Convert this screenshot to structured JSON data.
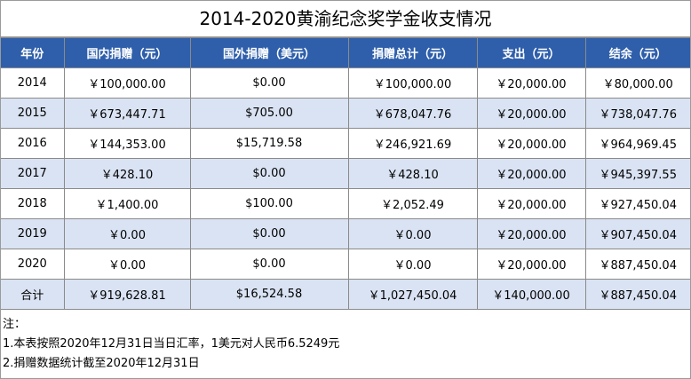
{
  "title": "2014-2020黄渝纪念奖学金收支情况",
  "headers": [
    "年份",
    "国内捐赠（元）",
    "国外捐赠（美元）",
    "捐赠总计（元）",
    "支出（元）",
    "结余（元）"
  ],
  "rows": [
    [
      "2014",
      "￥100,000.00",
      "$0.00",
      "￥100,000.00",
      "￥20,000.00",
      "￥80,000.00"
    ],
    [
      "2015",
      "￥673,447.71",
      "$705.00",
      "￥678,047.76",
      "￥20,000.00",
      "￥738,047.76"
    ],
    [
      "2016",
      "￥144,353.00",
      "$15,719.58",
      "￥246,921.69",
      "￥20,000.00",
      "￥964,969.45"
    ],
    [
      "2017",
      "￥428.10",
      "$0.00",
      "￥428.10",
      "￥20,000.00",
      "￥945,397.55"
    ],
    [
      "2018",
      "￥1,400.00",
      "$100.00",
      "￥2,052.49",
      "￥20,000.00",
      "￥927,450.04"
    ],
    [
      "2019",
      "￥0.00",
      "$0.00",
      "￥0.00",
      "￥20,000.00",
      "￥907,450.04"
    ],
    [
      "2020",
      "￥0.00",
      "$0.00",
      "￥0.00",
      "￥20,000.00",
      "￥887,450.04"
    ]
  ],
  "total": [
    "合计",
    "￥919,628.81",
    "$16,524.58",
    "￥1,027,450.04",
    "￥140,000.00",
    "￥887,450.04"
  ],
  "notes": {
    "heading": "注：",
    "lines": [
      "1.本表按照2020年12月31日当日汇率，1美元对人民币6.5249元",
      "2.捐赠数据统计截至2020年12月31日"
    ]
  },
  "colors": {
    "header_bg": "#2f5fab",
    "alt_row_bg": "#dae3f3"
  }
}
